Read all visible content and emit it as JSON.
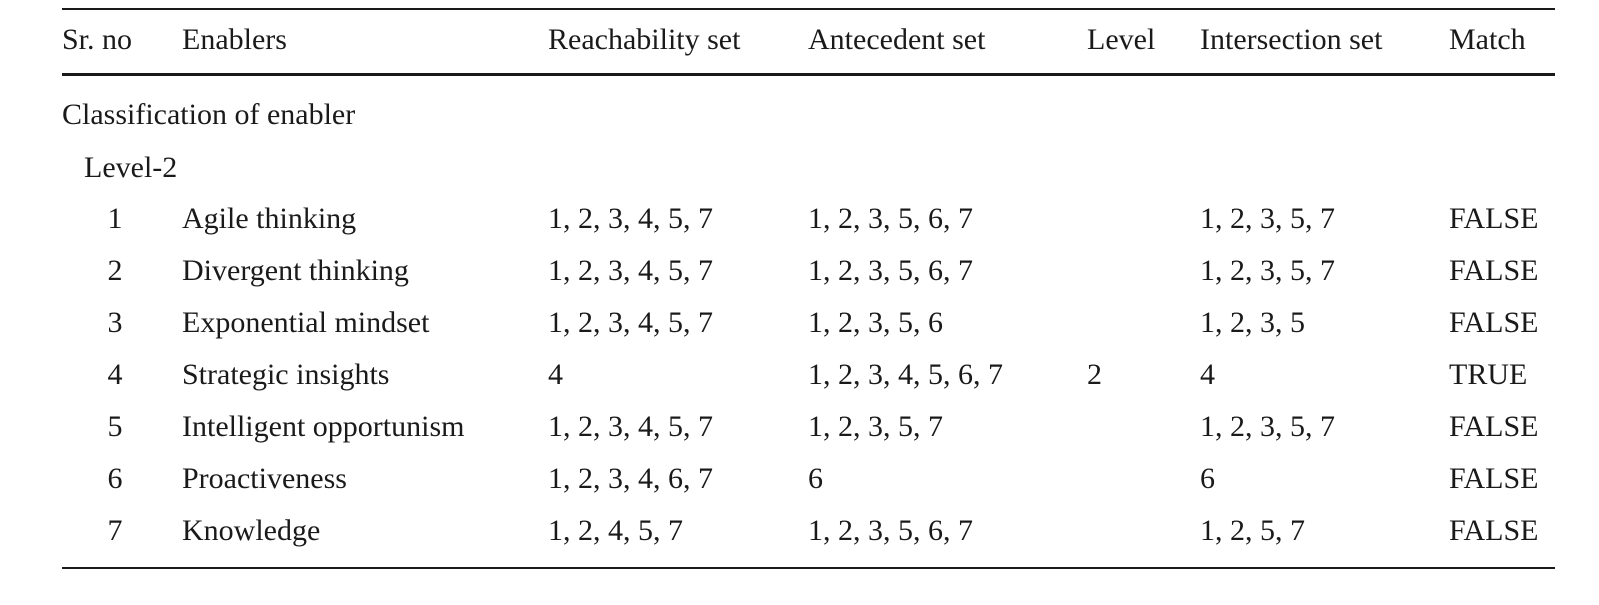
{
  "table": {
    "columns": [
      "Sr. no",
      "Enablers",
      "Reachability set",
      "Antecedent set",
      "Level",
      "Intersection set",
      "Match"
    ],
    "section": "Classification of enabler",
    "subsection": "Level-2",
    "rows": [
      [
        "1",
        "Agile thinking",
        "1, 2, 3, 4, 5, 7",
        "1, 2, 3, 5, 6, 7",
        null,
        "1, 2, 3, 5, 7",
        "FALSE"
      ],
      [
        "2",
        "Divergent thinking",
        "1, 2, 3, 4, 5, 7",
        "1, 2, 3, 5, 6, 7",
        null,
        "1, 2, 3, 5, 7",
        "FALSE"
      ],
      [
        "3",
        "Exponential mindset",
        "1, 2, 3, 4, 5, 7",
        "1, 2, 3, 5, 6",
        null,
        "1, 2, 3, 5",
        "FALSE"
      ],
      [
        "4",
        "Strategic insights",
        "4",
        "1, 2, 3, 4, 5, 6, 7",
        "2",
        "4",
        "TRUE"
      ],
      [
        "5",
        "Intelligent opportunism",
        "1, 2, 3, 4, 5, 7",
        "1, 2, 3, 5, 7",
        null,
        "1, 2, 3, 5, 7",
        "FALSE"
      ],
      [
        "6",
        "Proactiveness",
        "1, 2, 3, 4, 6, 7",
        "6",
        null,
        "6",
        "FALSE"
      ],
      [
        "7",
        "Knowledge",
        "1, 2, 4, 5, 7",
        "1, 2, 3, 5, 6, 7",
        null,
        "1, 2, 5, 7",
        "FALSE"
      ]
    ]
  }
}
